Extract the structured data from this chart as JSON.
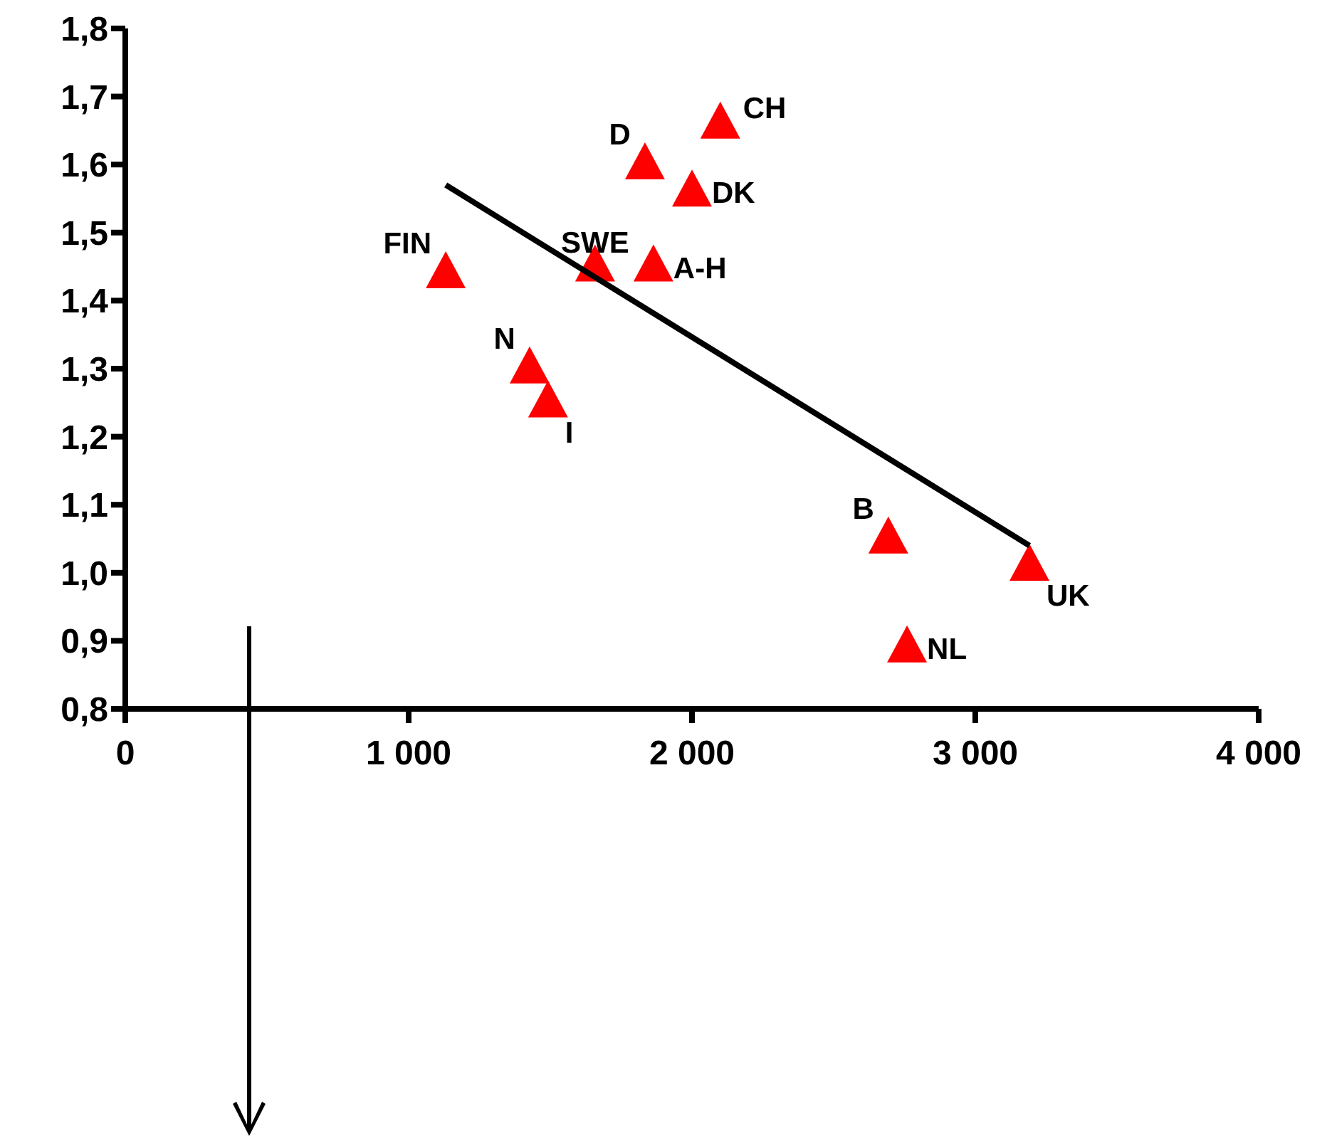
{
  "chart_data": {
    "type": "scatter",
    "series": [
      {
        "type": "scatter",
        "color": "#ff0000",
        "marker": "triangle",
        "x": [
          1131,
          1427,
          1492,
          1658,
          1864,
          1834,
          2000,
          2100,
          2693,
          3191,
          2759
        ],
        "values": [
          1.44,
          1.3,
          1.25,
          1.45,
          1.45,
          1.6,
          1.56,
          1.66,
          1.05,
          1.01,
          0.89
        ]
      },
      {
        "type": "line",
        "color": "#000000",
        "marker": "none",
        "line_style": "solid",
        "x": [
          1131,
          3191
        ],
        "values": [
          1.57,
          1.04
        ]
      }
    ],
    "annotations": [
      {
        "text": "FIN",
        "x": 1131,
        "y": 1.44
      },
      {
        "text": "N",
        "x": 1427,
        "y": 1.3
      },
      {
        "text": "I",
        "x": 1492,
        "y": 1.25
      },
      {
        "text": "SWE",
        "x": 1658,
        "y": 1.45
      },
      {
        "text": "A-H",
        "x": 1864,
        "y": 1.45
      },
      {
        "text": "D",
        "x": 1834,
        "y": 1.6
      },
      {
        "text": "DK",
        "x": 2000,
        "y": 1.56
      },
      {
        "text": "CH",
        "x": 2100,
        "y": 1.66
      },
      {
        "text": "B",
        "x": 2693,
        "y": 1.05
      },
      {
        "text": "UK",
        "x": 3191,
        "y": 1.01
      },
      {
        "text": "NL",
        "x": 2759,
        "y": 0.89
      }
    ],
    "xlim": [
      0,
      4000
    ],
    "xticks": [
      0,
      {
        "value": 1000,
        "label": "1 000"
      },
      {
        "value": 2000,
        "label": "2 000"
      },
      {
        "value": 3000,
        "label": "3 000"
      },
      {
        "value": 4000,
        "label": "4 000"
      }
    ],
    "ylim": [
      0.8,
      1.8
    ],
    "yticks": [
      {
        "value": 0.8,
        "label": "0,8"
      },
      {
        "value": 0.9,
        "label": "0,9"
      },
      {
        "value": 1.0,
        "label": "1,0"
      },
      {
        "value": 1.1,
        "label": "1,1"
      },
      {
        "value": 1.2,
        "label": "1,2"
      },
      {
        "value": 1.3,
        "label": "1,3"
      },
      {
        "value": 1.4,
        "label": "1,4"
      },
      {
        "value": 1.5,
        "label": "1,5"
      },
      {
        "value": 1.6,
        "label": "1,6"
      },
      {
        "value": 1.7,
        "label": "1,7"
      },
      {
        "value": 1.8,
        "label": "1,8"
      }
    ],
    "grid": false,
    "legend": false
  }
}
